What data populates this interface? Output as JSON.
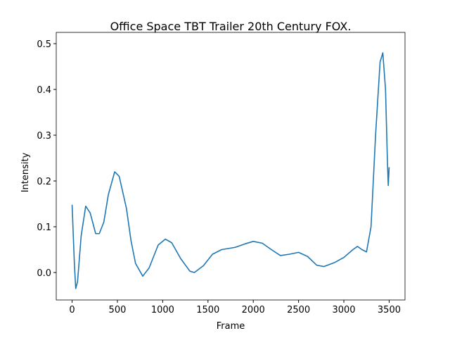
{
  "chart_data": {
    "type": "line",
    "title": "Office Space  TBT Trailer  20th Century FOX.",
    "x_label": "Frame",
    "y_label": "Intensity",
    "x": [
      0,
      25,
      40,
      60,
      100,
      150,
      200,
      260,
      300,
      350,
      400,
      470,
      520,
      600,
      650,
      700,
      780,
      850,
      950,
      1030,
      1100,
      1200,
      1300,
      1350,
      1450,
      1550,
      1650,
      1800,
      1900,
      2000,
      2100,
      2200,
      2300,
      2400,
      2500,
      2600,
      2700,
      2780,
      2900,
      3000,
      3100,
      3150,
      3200,
      3250,
      3300,
      3350,
      3400,
      3430,
      3460,
      3480,
      3490,
      3500
    ],
    "series": [
      {
        "color": "#1f77b4",
        "values": [
          0.148,
          0.02,
          -0.035,
          -0.02,
          0.08,
          0.145,
          0.13,
          0.085,
          0.085,
          0.11,
          0.17,
          0.22,
          0.21,
          0.14,
          0.07,
          0.02,
          -0.008,
          0.01,
          0.06,
          0.073,
          0.065,
          0.03,
          0.003,
          0.0,
          0.015,
          0.04,
          0.05,
          0.055,
          0.062,
          0.068,
          0.064,
          0.05,
          0.037,
          0.04,
          0.044,
          0.035,
          0.016,
          0.013,
          0.022,
          0.033,
          0.05,
          0.057,
          0.05,
          0.045,
          0.1,
          0.3,
          0.46,
          0.48,
          0.4,
          0.25,
          0.19,
          0.23
        ]
      }
    ],
    "xlim": [
      -175,
      3675
    ],
    "ylim": [
      -0.06,
      0.5246
    ],
    "xticks": [
      0,
      500,
      1000,
      1500,
      2000,
      2500,
      3000,
      3500
    ],
    "yticks": [
      {
        "value": 0,
        "label": "0.0"
      },
      0.1,
      0.2,
      0.3,
      0.4,
      0.5
    ]
  }
}
